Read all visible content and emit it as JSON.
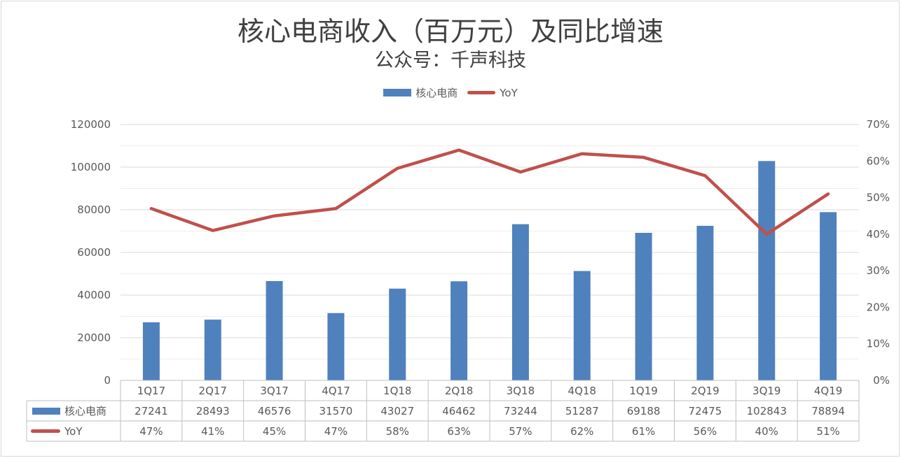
{
  "title": "核心电商收入（百万元）及同比增速",
  "subtitle": "公众号：千声科技",
  "legend": {
    "bar_label": "核心电商",
    "line_label": "YoY"
  },
  "colors": {
    "bar": "#4f81bd",
    "line": "#c0504d",
    "grid": "#d9d9d9",
    "text": "#595959"
  },
  "chart_data": {
    "type": "bar",
    "categories": [
      "1Q17",
      "2Q17",
      "3Q17",
      "4Q17",
      "1Q18",
      "2Q18",
      "3Q18",
      "4Q18",
      "1Q19",
      "2Q19",
      "3Q19",
      "4Q19"
    ],
    "series": [
      {
        "name": "核心电商",
        "type": "bar",
        "axis": "left",
        "values": [
          27241,
          28493,
          46576,
          31570,
          43027,
          46462,
          73244,
          51287,
          69188,
          72475,
          102843,
          78894
        ]
      },
      {
        "name": "YoY",
        "type": "line",
        "axis": "right",
        "values": [
          47,
          41,
          45,
          47,
          58,
          63,
          57,
          62,
          61,
          56,
          40,
          51
        ],
        "labels": [
          "47%",
          "41%",
          "45%",
          "47%",
          "58%",
          "63%",
          "57%",
          "62%",
          "61%",
          "56%",
          "40%",
          "51%"
        ]
      }
    ],
    "y_left": {
      "min": 0,
      "max": 120000,
      "ticks": [
        "0",
        "20000",
        "40000",
        "60000",
        "80000",
        "100000",
        "120000"
      ]
    },
    "y_right": {
      "min": 0,
      "max": 70,
      "ticks": [
        "0%",
        "10%",
        "20%",
        "30%",
        "40%",
        "50%",
        "60%",
        "70%"
      ]
    },
    "grid": true,
    "legend_position": "top",
    "data_table": true
  }
}
